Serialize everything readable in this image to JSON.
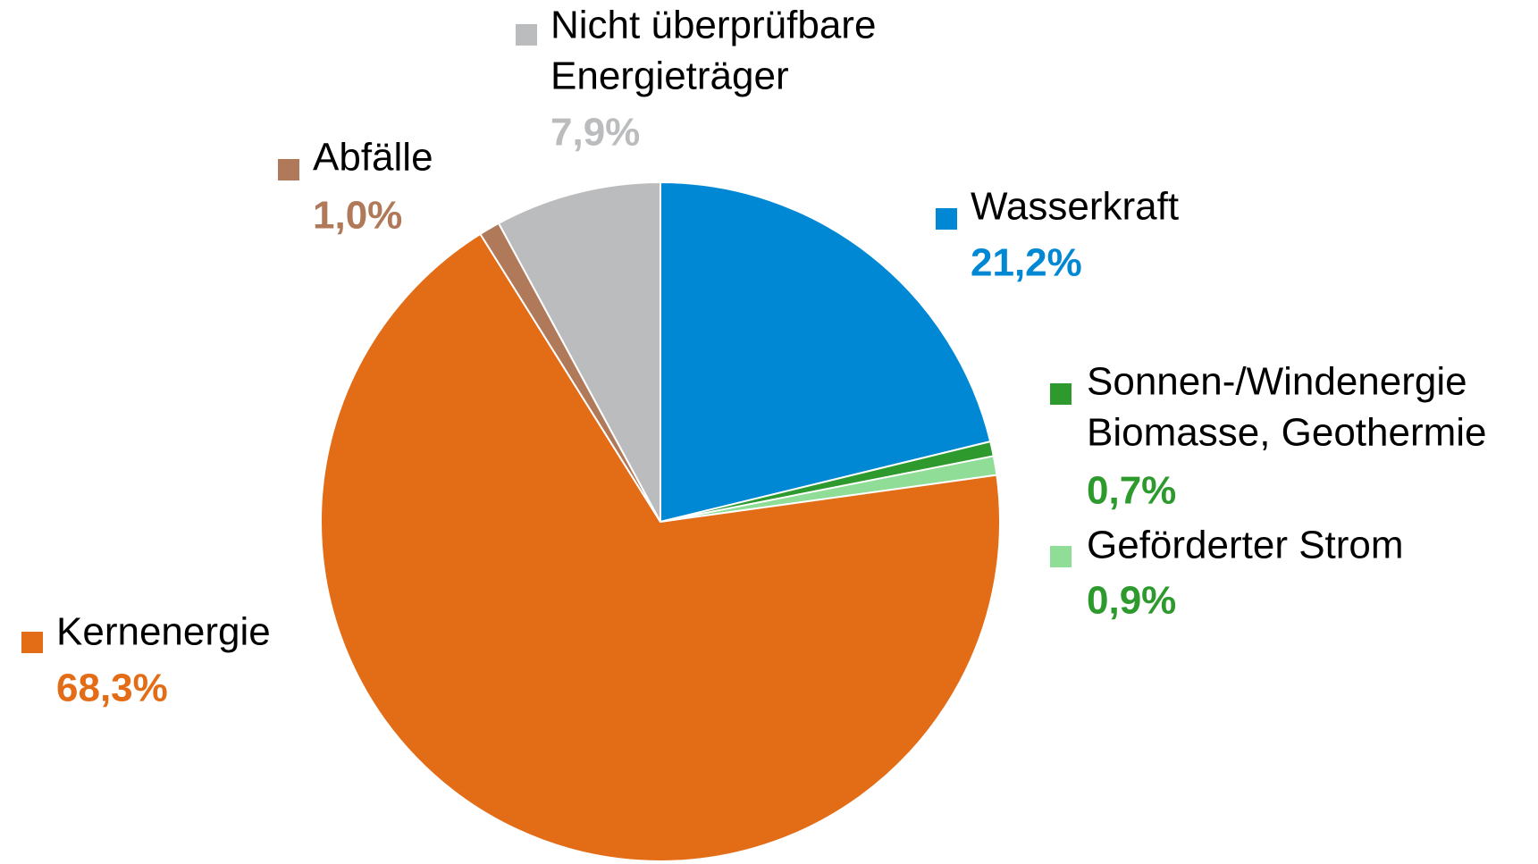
{
  "chart_data": {
    "type": "pie",
    "categories": [
      [
        "Wasserkraft"
      ],
      [
        "Sonnen-/Windenergie",
        "Biomasse, Geothermie"
      ],
      [
        "Geförderter Strom"
      ],
      [
        "Kernenergie"
      ],
      [
        "Abfälle"
      ],
      [
        "Nicht überprüfbare",
        "Energieträger"
      ]
    ],
    "values": [
      21.2,
      0.7,
      0.9,
      68.3,
      1.0,
      7.9
    ],
    "value_labels": [
      "21,2%",
      "0,7%",
      "0,9%",
      "68,3%",
      "1,0%",
      "7,9%"
    ],
    "colors": [
      "#0088d4",
      "#2e9a2e",
      "#8fdd96",
      "#e36c17",
      "#b07a5a",
      "#bbbcbe"
    ],
    "label_colors": [
      "#0088d4",
      "#2e9a2e",
      "#2e9a2e",
      "#e36c17",
      "#b07a5a",
      "#bbbcbe"
    ]
  }
}
